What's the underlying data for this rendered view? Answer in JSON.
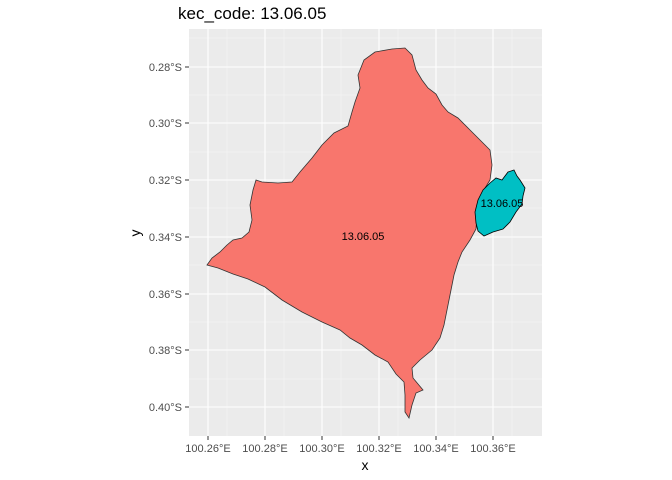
{
  "title": "kec_code: 13.06.05",
  "axes": {
    "xlabel": "x",
    "ylabel": "y",
    "x_ticks": [
      "100.26°E",
      "100.28°E",
      "100.30°E",
      "100.32°E",
      "100.34°E",
      "100.36°E"
    ],
    "y_ticks": [
      "0.28°S",
      "0.30°S",
      "0.32°S",
      "0.34°S",
      "0.36°S",
      "0.38°S",
      "0.40°S"
    ]
  },
  "regions": [
    {
      "label": "13.06.05",
      "fill": "#F8766D"
    },
    {
      "label": "13.06.05",
      "fill": "#00BFC4"
    }
  ],
  "colors": {
    "panel_background": "#EBEBEB",
    "grid": "#FFFFFF",
    "outline": "#333333"
  }
}
